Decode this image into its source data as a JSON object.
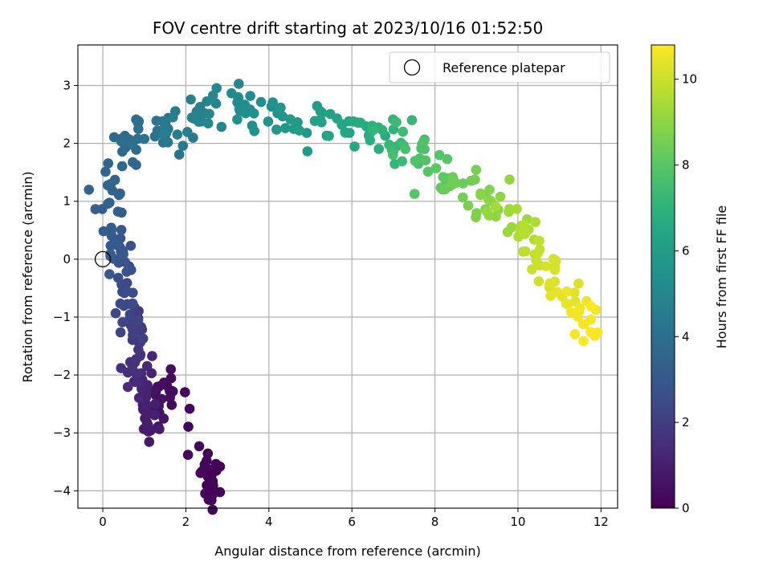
{
  "chart_data": {
    "type": "scatter",
    "title": "FOV centre drift starting at 2023/10/16 01:52:50",
    "xlabel": "Angular distance from reference (arcmin)",
    "ylabel": "Rotation from reference (arcmin)",
    "xlim": [
      -0.6,
      12.4
    ],
    "ylim": [
      -4.3,
      3.7
    ],
    "xticks": [
      0,
      2,
      4,
      6,
      8,
      10,
      12
    ],
    "yticks": [
      -4,
      -3,
      -2,
      -1,
      0,
      1,
      2,
      3
    ],
    "grid": true,
    "legend": {
      "placement": "top-right",
      "entries": [
        "Reference platepar"
      ]
    },
    "reference_point": {
      "x": 0,
      "y": 0
    },
    "colorbar": {
      "label": "Hours from first FF file",
      "range": [
        0,
        10.8
      ],
      "ticks": [
        0,
        2,
        4,
        6,
        8,
        10
      ],
      "colormap": "viridis"
    },
    "series_anchors": [
      [
        2.55,
        -3.75,
        0.0
      ],
      [
        2.6,
        -3.9,
        0.1
      ],
      [
        2.65,
        -3.93,
        0.15
      ],
      [
        1.6,
        -2.0,
        0.3
      ],
      [
        1.25,
        -2.42,
        0.5
      ],
      [
        1.2,
        -3.0,
        0.8
      ],
      [
        1.05,
        -2.6,
        1.0
      ],
      [
        1.0,
        -2.0,
        1.2
      ],
      [
        0.7,
        -1.95,
        1.5
      ],
      [
        0.9,
        -1.3,
        1.8
      ],
      [
        0.75,
        -1.2,
        2.1
      ],
      [
        0.5,
        -0.85,
        2.4
      ],
      [
        0.6,
        -0.3,
        2.7
      ],
      [
        0.35,
        0.1,
        3.0
      ],
      [
        0.1,
        0.6,
        3.2
      ],
      [
        0.3,
        1.3,
        3.5
      ],
      [
        0.5,
        2.0,
        3.8
      ],
      [
        1.0,
        2.15,
        4.1
      ],
      [
        1.6,
        2.2,
        4.4
      ],
      [
        2.0,
        2.5,
        4.7
      ],
      [
        2.7,
        2.7,
        5.0
      ],
      [
        3.5,
        2.6,
        5.3
      ],
      [
        4.2,
        2.4,
        5.6
      ],
      [
        5.0,
        2.35,
        6.0
      ],
      [
        5.8,
        2.3,
        6.4
      ],
      [
        6.5,
        2.15,
        6.8
      ],
      [
        7.0,
        2.1,
        7.2
      ],
      [
        7.5,
        1.9,
        7.6
      ],
      [
        8.0,
        1.6,
        8.0
      ],
      [
        8.6,
        1.3,
        8.4
      ],
      [
        9.2,
        1.0,
        8.8
      ],
      [
        9.7,
        0.8,
        9.2
      ],
      [
        10.2,
        0.4,
        9.6
      ],
      [
        10.6,
        -0.1,
        10.0
      ],
      [
        11.0,
        -0.5,
        10.3
      ],
      [
        11.5,
        -0.9,
        10.6
      ],
      [
        11.8,
        -1.3,
        10.8
      ]
    ],
    "point_count": 420,
    "seed": 17
  }
}
